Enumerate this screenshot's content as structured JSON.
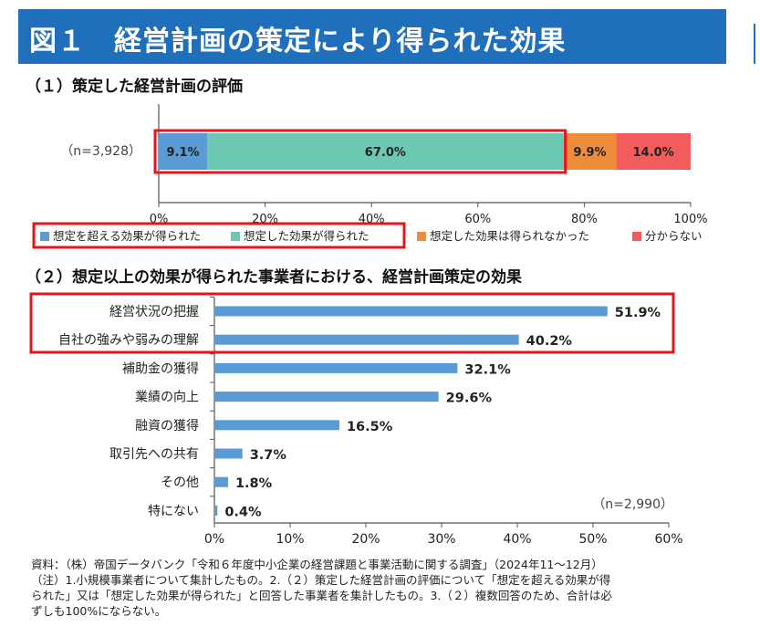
{
  "title": "図１　経営計画の策定により得られた効果",
  "section1": {
    "heading": "（１）策定した経営計画の評価",
    "n_label": "（n=3,928）",
    "chart_data": {
      "type": "bar",
      "orientation": "horizontal-stacked-100",
      "categories": [
        "（n=3,928）"
      ],
      "series": [
        {
          "name": "想定を超える効果が得られた",
          "values": [
            9.1
          ],
          "label": "9.1%",
          "color": "#5b9bd5"
        },
        {
          "name": "想定した効果が得られた",
          "values": [
            67.0
          ],
          "label": "67.0%",
          "color": "#6cc8b2"
        },
        {
          "name": "想定した効果は得られなかった",
          "values": [
            9.9
          ],
          "label": "9.9%",
          "color": "#ef8c3a"
        },
        {
          "name": "分からない",
          "values": [
            14.0
          ],
          "label": "14.0%",
          "color": "#f25c5c"
        }
      ],
      "xlim": [
        0,
        100
      ],
      "ticks": [
        0,
        20,
        40,
        60,
        80,
        100
      ],
      "tick_labels": [
        "0%",
        "20%",
        "40%",
        "60%",
        "80%",
        "100%"
      ],
      "highlight_color": "#e8141c",
      "legend_placement": "bottom"
    }
  },
  "section2": {
    "heading": "（２）想定以上の効果が得られた事業者における、経営計画策定の効果",
    "n_label": "（n=2,990）",
    "chart_data": {
      "type": "bar",
      "orientation": "horizontal",
      "categories": [
        "経営状況の把握",
        "自社の強みや弱みの理解",
        "補助金の獲得",
        "業績の向上",
        "融資の獲得",
        "取引先への共有",
        "その他",
        "特にない"
      ],
      "values": [
        51.9,
        40.2,
        32.1,
        29.6,
        16.5,
        3.7,
        1.8,
        0.4
      ],
      "value_labels": [
        "51.9%",
        "40.2%",
        "32.1%",
        "29.6%",
        "16.5%",
        "3.7%",
        "1.8%",
        "0.4%"
      ],
      "xlim": [
        0,
        60
      ],
      "ticks": [
        0,
        10,
        20,
        30,
        40,
        50,
        60
      ],
      "tick_labels": [
        "0%",
        "10%",
        "20%",
        "30%",
        "40%",
        "50%",
        "60%"
      ],
      "bar_color": "#5b9bd5",
      "highlight_color": "#e8141c"
    }
  },
  "footnotes": [
    "資料：（株）帝国データバンク「令和６年度中小企業の経営課題と事業活動に関する調査」（2024年11〜12月）",
    "（注）1.小規模事業者について集計したもの。2.（２）策定した経営計画の評価について「想定を超える効果が得",
    "られた」又は「想定した効果が得られた」と回答した事業者を集計したもの。3.（２）複数回答のため、合計は必",
    "ずしも100%にならない。"
  ]
}
